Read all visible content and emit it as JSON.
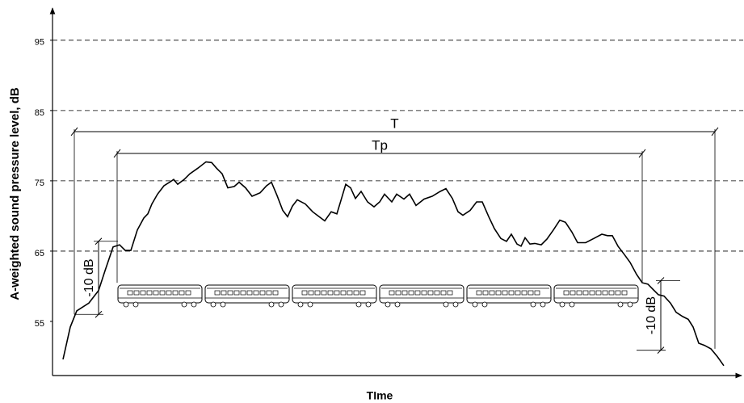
{
  "chart_data": {
    "type": "line",
    "x_label": "TIme",
    "y_label": "A-weighted sound pressure level, dB",
    "color": "#000000",
    "xlim": [
      0,
      850
    ],
    "ylim": [
      47.3,
      99.0
    ],
    "yticks": [
      55,
      65,
      75,
      85,
      95
    ],
    "dashed_lines": [
      65,
      75,
      85,
      95
    ],
    "x": [
      13,
      22,
      30,
      45,
      57,
      65,
      75,
      83,
      90,
      97,
      105,
      113,
      118,
      123,
      130,
      138,
      145,
      150,
      155,
      163,
      170,
      180,
      190,
      197,
      203,
      210,
      217,
      225,
      231,
      239,
      247,
      257,
      265,
      271,
      278,
      285,
      291,
      297,
      303,
      313,
      322,
      330,
      337,
      345,
      352,
      357,
      363,
      369,
      375,
      382,
      390,
      398,
      405,
      411,
      420,
      426,
      435,
      442,
      450,
      460,
      470,
      480,
      487,
      495,
      502,
      508,
      517,
      525,
      532,
      540,
      547,
      555,
      562,
      568,
      575,
      580,
      585,
      591,
      597,
      605,
      612,
      620,
      628,
      635,
      643,
      650,
      660,
      670,
      680,
      687,
      693,
      700,
      708,
      715,
      723,
      730,
      737,
      743,
      750,
      757,
      765,
      772,
      780,
      787,
      793,
      800,
      807,
      815,
      823,
      831
    ],
    "values": [
      49.6,
      54.2,
      56.5,
      57.6,
      59.4,
      62.2,
      65.6,
      65.9,
      65.1,
      65.1,
      68.0,
      69.7,
      70.3,
      71.7,
      73.1,
      74.3,
      74.8,
      75.2,
      74.5,
      75.2,
      76.0,
      76.8,
      77.7,
      77.6,
      76.8,
      76.0,
      74.0,
      74.2,
      74.8,
      74.0,
      72.8,
      73.3,
      74.3,
      74.8,
      72.9,
      70.8,
      69.9,
      71.4,
      72.3,
      71.7,
      70.6,
      69.9,
      69.3,
      70.6,
      70.3,
      72.2,
      74.5,
      74.0,
      72.5,
      73.5,
      72.0,
      71.3,
      72.0,
      73.1,
      72.0,
      73.1,
      72.4,
      73.1,
      71.5,
      72.4,
      72.8,
      73.5,
      73.9,
      72.5,
      70.6,
      70.1,
      70.8,
      72.0,
      72.0,
      69.9,
      68.2,
      66.8,
      66.4,
      67.4,
      66.0,
      65.7,
      66.9,
      66.0,
      66.1,
      65.9,
      66.7,
      68.0,
      69.4,
      69.1,
      67.7,
      66.2,
      66.2,
      66.8,
      67.4,
      67.2,
      67.2,
      65.7,
      64.5,
      63.4,
      61.7,
      60.5,
      60.3,
      59.6,
      58.8,
      58.6,
      57.6,
      56.3,
      55.7,
      55.3,
      54.2,
      51.9,
      51.6,
      51.1,
      50.0,
      48.7
    ],
    "spans": [
      {
        "label": "T",
        "x": [
          27,
          820
        ],
        "y": 82.0,
        "drop_to": [
          56.0,
          51.1
        ]
      },
      {
        "label": "Tp",
        "x": [
          80,
          730
        ],
        "y": 78.9,
        "drop_to": [
          60.5,
          60.5
        ]
      }
    ],
    "level_markers": [
      {
        "label": "-10 dB",
        "x": 57,
        "levels": [
          66.4,
          56.0
        ]
      },
      {
        "label": "-10 dB",
        "x": 753,
        "levels": [
          60.8,
          50.9
        ]
      }
    ]
  }
}
